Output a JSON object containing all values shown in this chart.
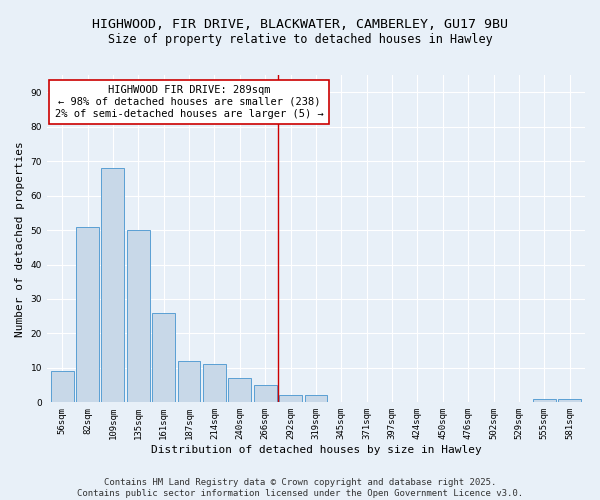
{
  "title_line1": "HIGHWOOD, FIR DRIVE, BLACKWATER, CAMBERLEY, GU17 9BU",
  "title_line2": "Size of property relative to detached houses in Hawley",
  "xlabel": "Distribution of detached houses by size in Hawley",
  "ylabel": "Number of detached properties",
  "bar_color": "#c8d8e8",
  "bar_edge_color": "#5a9fd4",
  "categories": [
    "56sqm",
    "82sqm",
    "109sqm",
    "135sqm",
    "161sqm",
    "187sqm",
    "214sqm",
    "240sqm",
    "266sqm",
    "292sqm",
    "319sqm",
    "345sqm",
    "371sqm",
    "397sqm",
    "424sqm",
    "450sqm",
    "476sqm",
    "502sqm",
    "529sqm",
    "555sqm",
    "581sqm"
  ],
  "values": [
    9,
    51,
    68,
    50,
    26,
    12,
    11,
    7,
    5,
    2,
    2,
    0,
    0,
    0,
    0,
    0,
    0,
    0,
    0,
    1,
    1
  ],
  "ylim": [
    0,
    95
  ],
  "yticks": [
    0,
    10,
    20,
    30,
    40,
    50,
    60,
    70,
    80,
    90
  ],
  "vline_x": 8.5,
  "vline_color": "#cc0000",
  "annotation_text": "HIGHWOOD FIR DRIVE: 289sqm\n← 98% of detached houses are smaller (238)\n2% of semi-detached houses are larger (5) →",
  "footer_line1": "Contains HM Land Registry data © Crown copyright and database right 2025.",
  "footer_line2": "Contains public sector information licensed under the Open Government Licence v3.0.",
  "background_color": "#e8f0f8",
  "grid_color": "#ffffff",
  "title_fontsize": 9.5,
  "subtitle_fontsize": 8.5,
  "axis_label_fontsize": 8,
  "tick_fontsize": 6.5,
  "annotation_fontsize": 7.5,
  "footer_fontsize": 6.5
}
